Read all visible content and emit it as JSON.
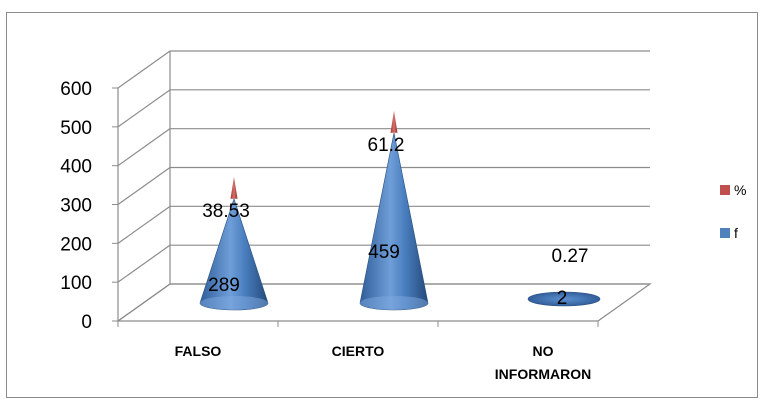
{
  "chart_data": {
    "type": "bar",
    "style": "3d-cone",
    "categories": [
      {
        "lines": [
          "FALSO"
        ]
      },
      {
        "lines": [
          "CIERTO"
        ]
      },
      {
        "lines": [
          "NO",
          "INFORMARON"
        ]
      }
    ],
    "series": [
      {
        "name": "f",
        "color": "#4f81bd",
        "values": [
          289,
          459,
          2
        ],
        "labels": [
          "289",
          "459",
          "2"
        ]
      },
      {
        "name": "%",
        "color": "#c0504d",
        "values": [
          38.53,
          61.2,
          0.27
        ],
        "labels": [
          "38.53",
          "61.2",
          "0.27"
        ]
      }
    ],
    "ylim": [
      0,
      600
    ],
    "yticks": [
      0,
      100,
      200,
      300,
      400,
      500,
      600
    ],
    "grid": true,
    "legend_position": "right"
  }
}
